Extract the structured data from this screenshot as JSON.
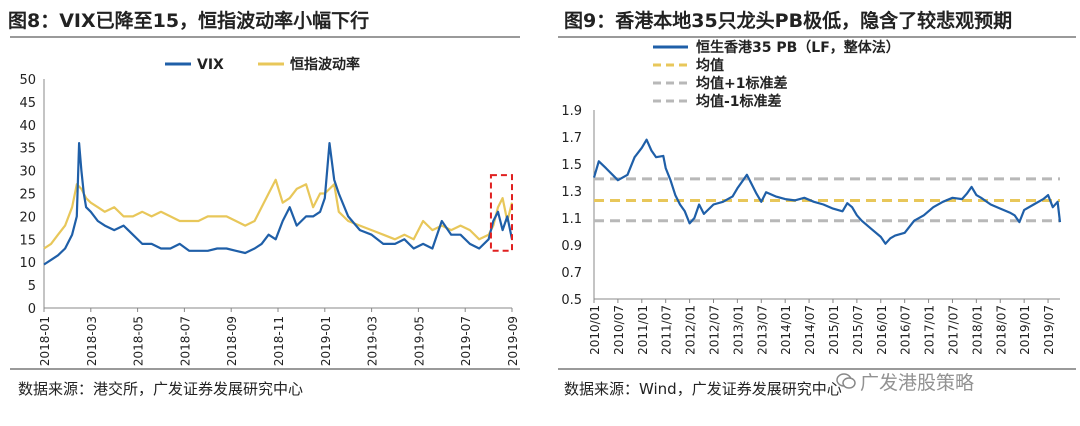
{
  "left": {
    "title": "图8：VIX已降至15，恒指波动率小幅下行",
    "source": "数据来源：港交所，广发证券发展研究中心",
    "chart_data": {
      "type": "line",
      "title": "VIX已降至15，恒指波动率小幅下行",
      "ylim": [
        0,
        50
      ],
      "yticks": [
        0,
        5,
        10,
        15,
        20,
        25,
        30,
        35,
        40,
        45,
        50
      ],
      "xticks": [
        "2018-01",
        "2018-03",
        "2018-05",
        "2018-07",
        "2018-09",
        "2018-11",
        "2019-01",
        "2019-03",
        "2019-05",
        "2019-07",
        "2019-09"
      ],
      "x_unit": "months since 2018-01",
      "xlim": [
        0,
        20
      ],
      "legend": [
        "VIX",
        "恒指波动率"
      ],
      "legend_position": "top-center",
      "annotation": "red dashed box highlighting 2019-08 to 2019-09",
      "annotation_range": [
        19.1,
        20.0
      ],
      "annotation_y": [
        12.5,
        29
      ],
      "series": [
        {
          "name": "VIX",
          "color": "#1f5fa8",
          "x": [
            0,
            0.3,
            0.6,
            0.9,
            1.2,
            1.4,
            1.5,
            1.6,
            1.7,
            1.8,
            2.0,
            2.3,
            2.6,
            3.0,
            3.4,
            3.8,
            4.2,
            4.6,
            5.0,
            5.4,
            5.8,
            6.2,
            6.6,
            7.0,
            7.4,
            7.8,
            8.2,
            8.6,
            9.0,
            9.3,
            9.6,
            9.9,
            10.2,
            10.5,
            10.8,
            11.2,
            11.5,
            11.8,
            12.0,
            12.2,
            12.4,
            12.6,
            13.0,
            13.5,
            14.0,
            14.5,
            15.0,
            15.4,
            15.8,
            16.2,
            16.6,
            17.0,
            17.4,
            17.8,
            18.2,
            18.6,
            19.0,
            19.2,
            19.4,
            19.6,
            19.8,
            20.0
          ],
          "y": [
            9.5,
            10.5,
            11.5,
            13,
            16,
            20,
            36,
            30,
            25,
            22,
            21,
            19,
            18,
            17,
            18,
            16,
            14,
            14,
            13,
            13,
            14,
            12.5,
            12.5,
            12.5,
            13,
            13,
            12.5,
            12,
            13,
            14,
            16,
            15,
            19,
            22,
            18,
            20,
            20,
            21,
            24,
            36,
            28,
            25,
            20,
            17,
            16,
            14,
            14,
            15,
            13,
            14,
            13,
            19,
            16,
            16,
            14,
            13,
            15,
            19,
            21,
            17,
            20,
            15
          ]
        },
        {
          "name": "恒指波动率",
          "color": "#e8c75a",
          "x": [
            0,
            0.3,
            0.6,
            0.9,
            1.2,
            1.4,
            1.6,
            1.8,
            2.0,
            2.3,
            2.6,
            3.0,
            3.4,
            3.8,
            4.2,
            4.6,
            5.0,
            5.4,
            5.8,
            6.2,
            6.6,
            7.0,
            7.4,
            7.8,
            8.2,
            8.6,
            9.0,
            9.3,
            9.6,
            9.9,
            10.2,
            10.5,
            10.8,
            11.2,
            11.5,
            11.8,
            12.0,
            12.2,
            12.4,
            12.6,
            13.0,
            13.5,
            14.0,
            14.5,
            15.0,
            15.4,
            15.8,
            16.2,
            16.6,
            17.0,
            17.4,
            17.8,
            18.2,
            18.6,
            19.0,
            19.2,
            19.4,
            19.6,
            19.8,
            20.0
          ],
          "y": [
            13,
            14,
            16,
            18,
            22,
            27,
            26,
            24,
            23,
            22,
            21,
            22,
            20,
            20,
            21,
            20,
            21,
            20,
            19,
            19,
            19,
            20,
            20,
            20,
            19,
            18,
            19,
            22,
            25,
            28,
            23,
            24,
            26,
            27,
            22,
            25,
            25,
            26,
            27,
            21,
            19,
            18,
            17,
            16,
            15,
            16,
            15,
            19,
            17,
            18,
            17,
            18,
            17,
            15,
            16,
            18,
            22,
            24,
            19,
            23
          ]
        }
      ]
    }
  },
  "right": {
    "title": "图9：香港本地35只龙头PB极低，隐含了较悲观预期",
    "source": "数据来源：Wind，广发证券发展研究中心",
    "watermark": "广发港股策略",
    "chart_data": {
      "type": "line",
      "title": "香港本地35只龙头PB极低，隐含了较悲观预期",
      "ylim": [
        0.5,
        1.9
      ],
      "yticks": [
        0.5,
        0.7,
        0.9,
        1.1,
        1.3,
        1.5,
        1.7,
        1.9
      ],
      "xticks": [
        "2010/01",
        "2010/07",
        "2011/01",
        "2011/07",
        "2012/01",
        "2012/07",
        "2013/01",
        "2013/07",
        "2014/01",
        "2014/07",
        "2015/01",
        "2015/07",
        "2016/01",
        "2016/07",
        "2017/01",
        "2017/07",
        "2018/01",
        "2018/07",
        "2019/01",
        "2019/07"
      ],
      "x_unit": "years since 2010-01",
      "xlim": [
        0,
        9.75
      ],
      "legend_position": "top-left",
      "series": [
        {
          "name": "恒生香港35 PB（LF，整体法）",
          "color": "#1f5fa8",
          "style": "solid",
          "x": [
            0,
            0.1,
            0.25,
            0.5,
            0.7,
            0.85,
            1.0,
            1.1,
            1.2,
            1.3,
            1.45,
            1.5,
            1.6,
            1.7,
            1.8,
            1.9,
            2.0,
            2.1,
            2.2,
            2.3,
            2.5,
            2.7,
            2.9,
            3.0,
            3.1,
            3.2,
            3.3,
            3.4,
            3.5,
            3.6,
            3.8,
            4.0,
            4.2,
            4.4,
            4.6,
            4.8,
            5.0,
            5.2,
            5.3,
            5.4,
            5.5,
            5.6,
            5.8,
            6.0,
            6.1,
            6.2,
            6.3,
            6.5,
            6.7,
            6.9,
            7.1,
            7.3,
            7.5,
            7.7,
            7.8,
            7.9,
            8.0,
            8.1,
            8.3,
            8.5,
            8.7,
            8.8,
            8.9,
            9.0,
            9.2,
            9.4,
            9.5,
            9.6,
            9.7,
            9.75
          ],
          "y": [
            1.4,
            1.52,
            1.47,
            1.38,
            1.42,
            1.55,
            1.62,
            1.68,
            1.6,
            1.55,
            1.56,
            1.47,
            1.38,
            1.27,
            1.2,
            1.15,
            1.06,
            1.1,
            1.2,
            1.13,
            1.2,
            1.22,
            1.26,
            1.32,
            1.37,
            1.42,
            1.35,
            1.28,
            1.22,
            1.29,
            1.26,
            1.24,
            1.23,
            1.25,
            1.22,
            1.2,
            1.17,
            1.15,
            1.21,
            1.18,
            1.12,
            1.08,
            1.02,
            0.96,
            0.91,
            0.95,
            0.97,
            0.99,
            1.08,
            1.12,
            1.18,
            1.22,
            1.25,
            1.24,
            1.28,
            1.33,
            1.27,
            1.25,
            1.2,
            1.17,
            1.14,
            1.12,
            1.07,
            1.16,
            1.2,
            1.24,
            1.27,
            1.18,
            1.22,
            1.07
          ]
        },
        {
          "name": "均值",
          "color": "#e8c75a",
          "style": "dashed",
          "y": 1.23
        },
        {
          "name": "均值+1标准差",
          "color": "#b8b8b8",
          "style": "dashed",
          "y": 1.39
        },
        {
          "name": "均值-1标准差",
          "color": "#b8b8b8",
          "style": "dashed",
          "y": 1.08
        }
      ]
    }
  }
}
